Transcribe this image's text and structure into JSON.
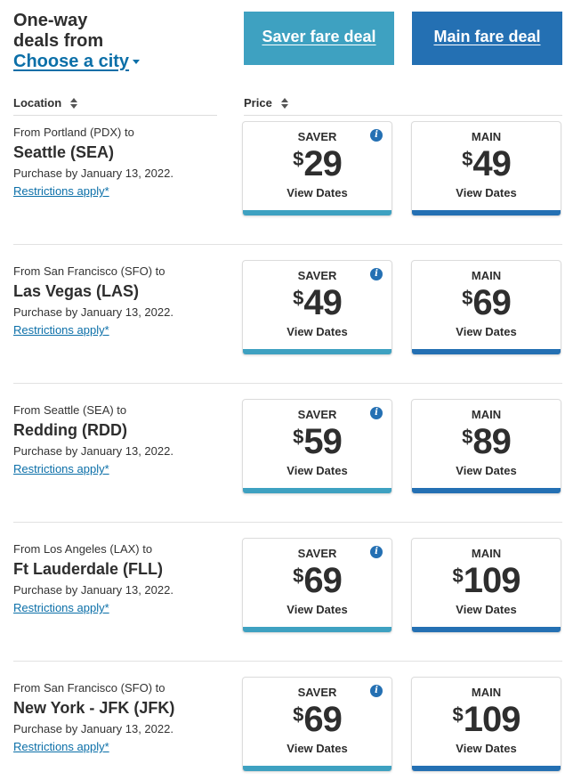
{
  "header": {
    "headline_line1": "One-way",
    "headline_line2": "deals from",
    "choose_city": "Choose a city",
    "saver_button": "Saver fare deal",
    "main_button": "Main fare deal"
  },
  "columns": {
    "location": "Location",
    "price": "Price"
  },
  "colors": {
    "saver": "#3ea1c1",
    "main": "#2470b3",
    "link": "#0b6fa8"
  },
  "deals": [
    {
      "from": "From Portland (PDX) to",
      "destination": "Seattle (SEA)",
      "purchase": "Purchase by January 13, 2022.",
      "restrictions": "Restrictions apply*",
      "saver": {
        "label": "SAVER",
        "currency": "$",
        "price": "29",
        "cta": "View Dates"
      },
      "main": {
        "label": "MAIN",
        "currency": "$",
        "price": "49",
        "cta": "View Dates"
      }
    },
    {
      "from": "From San Francisco (SFO) to",
      "destination": "Las Vegas (LAS)",
      "purchase": "Purchase by January 13, 2022.",
      "restrictions": "Restrictions apply*",
      "saver": {
        "label": "SAVER",
        "currency": "$",
        "price": "49",
        "cta": "View Dates"
      },
      "main": {
        "label": "MAIN",
        "currency": "$",
        "price": "69",
        "cta": "View Dates"
      }
    },
    {
      "from": "From Seattle (SEA) to",
      "destination": "Redding (RDD)",
      "purchase": "Purchase by January 13, 2022.",
      "restrictions": "Restrictions apply*",
      "saver": {
        "label": "SAVER",
        "currency": "$",
        "price": "59",
        "cta": "View Dates"
      },
      "main": {
        "label": "MAIN",
        "currency": "$",
        "price": "89",
        "cta": "View Dates"
      }
    },
    {
      "from": "From Los Angeles (LAX) to",
      "destination": "Ft Lauderdale (FLL)",
      "purchase": "Purchase by January 13, 2022.",
      "restrictions": "Restrictions apply*",
      "saver": {
        "label": "SAVER",
        "currency": "$",
        "price": "69",
        "cta": "View Dates"
      },
      "main": {
        "label": "MAIN",
        "currency": "$",
        "price": "109",
        "cta": "View Dates"
      }
    },
    {
      "from": "From San Francisco (SFO) to",
      "destination": "New York - JFK (JFK)",
      "purchase": "Purchase by January 13, 2022.",
      "restrictions": "Restrictions apply*",
      "saver": {
        "label": "SAVER",
        "currency": "$",
        "price": "69",
        "cta": "View Dates"
      },
      "main": {
        "label": "MAIN",
        "currency": "$",
        "price": "109",
        "cta": "View Dates"
      }
    }
  ]
}
